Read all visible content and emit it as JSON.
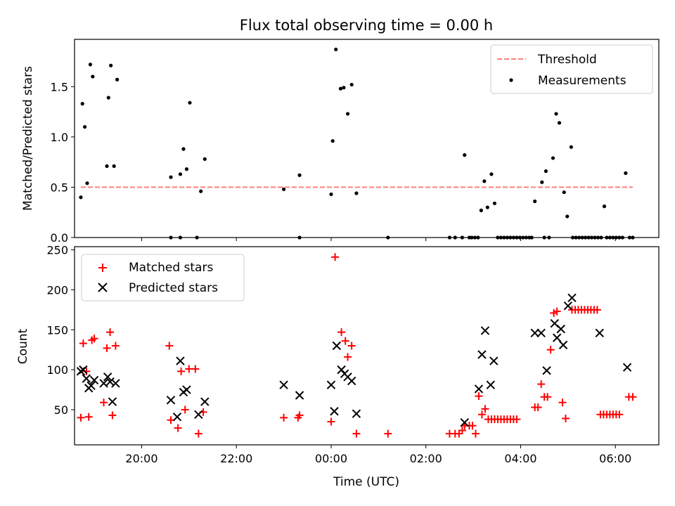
{
  "chart_data": [
    {
      "type": "scatter",
      "title": "Flux total observing time = 0.00 h",
      "xlabel": "",
      "ylabel": "Matched/Predicted stars",
      "xlim": [
        "18:35",
        "06:55"
      ],
      "ylim": [
        0,
        1.97
      ],
      "yticks": [
        0.0,
        0.5,
        1.0,
        1.5
      ],
      "ytick_labels": [
        "0.0",
        "0.5",
        "1.0",
        "1.5"
      ],
      "legend": {
        "position": "top-right",
        "threshold_label": "Threshold",
        "measurements_label": "Measurements"
      },
      "threshold": {
        "value": 0.5,
        "x_start": "18:43",
        "x_end": "06:22",
        "color": "#ff7f7f",
        "style": "dashed"
      },
      "series": [
        {
          "name": "Measurements",
          "color": "#000000",
          "marker": "dot",
          "points": [
            [
              "18:43",
              0.4
            ],
            [
              "18:45",
              1.33
            ],
            [
              "18:48",
              1.1
            ],
            [
              "18:51",
              0.54
            ],
            [
              "18:55",
              1.72
            ],
            [
              "18:58",
              1.6
            ],
            [
              "19:16",
              0.71
            ],
            [
              "19:18",
              1.39
            ],
            [
              "19:21",
              1.71
            ],
            [
              "19:25",
              0.71
            ],
            [
              "19:29",
              1.57
            ],
            [
              "20:37",
              0.6
            ],
            [
              "20:37",
              0.0
            ],
            [
              "20:49",
              0.63
            ],
            [
              "20:49",
              0.0
            ],
            [
              "20:53",
              0.88
            ],
            [
              "20:57",
              0.68
            ],
            [
              "21:01",
              1.34
            ],
            [
              "21:10",
              0.0
            ],
            [
              "21:15",
              0.46
            ],
            [
              "21:20",
              0.78
            ],
            [
              "23:00",
              0.48
            ],
            [
              "23:20",
              0.62
            ],
            [
              "23:20",
              0.0
            ],
            [
              "00:00",
              0.43
            ],
            [
              "00:02",
              0.96
            ],
            [
              "00:06",
              1.87
            ],
            [
              "00:12",
              1.48
            ],
            [
              "00:16",
              1.49
            ],
            [
              "00:21",
              1.23
            ],
            [
              "00:26",
              1.52
            ],
            [
              "00:32",
              0.44
            ],
            [
              "01:12",
              0.0
            ],
            [
              "02:30",
              0.0
            ],
            [
              "02:37",
              0.0
            ],
            [
              "02:46",
              0.0
            ],
            [
              "02:49",
              0.82
            ],
            [
              "02:55",
              0.0
            ],
            [
              "02:58",
              0.0
            ],
            [
              "03:02",
              0.0
            ],
            [
              "03:06",
              0.0
            ],
            [
              "03:10",
              0.27
            ],
            [
              "03:14",
              0.56
            ],
            [
              "03:18",
              0.3
            ],
            [
              "03:23",
              0.63
            ],
            [
              "03:27",
              0.34
            ],
            [
              "03:31",
              0.0
            ],
            [
              "03:35",
              0.0
            ],
            [
              "03:39",
              0.0
            ],
            [
              "03:43",
              0.0
            ],
            [
              "03:47",
              0.0
            ],
            [
              "03:51",
              0.0
            ],
            [
              "03:55",
              0.0
            ],
            [
              "03:59",
              0.0
            ],
            [
              "04:03",
              0.0
            ],
            [
              "04:07",
              0.0
            ],
            [
              "04:11",
              0.0
            ],
            [
              "04:14",
              0.0
            ],
            [
              "04:18",
              0.36
            ],
            [
              "04:27",
              0.55
            ],
            [
              "04:30",
              0.0
            ],
            [
              "04:32",
              0.66
            ],
            [
              "04:36",
              0.0
            ],
            [
              "04:41",
              0.79
            ],
            [
              "04:45",
              1.23
            ],
            [
              "04:49",
              1.14
            ],
            [
              "04:55",
              0.45
            ],
            [
              "04:59",
              0.21
            ],
            [
              "05:04",
              0.9
            ],
            [
              "05:06",
              0.0
            ],
            [
              "05:10",
              0.0
            ],
            [
              "05:14",
              0.0
            ],
            [
              "05:18",
              0.0
            ],
            [
              "05:22",
              0.0
            ],
            [
              "05:26",
              0.0
            ],
            [
              "05:30",
              0.0
            ],
            [
              "05:34",
              0.0
            ],
            [
              "05:38",
              0.0
            ],
            [
              "05:42",
              0.0
            ],
            [
              "05:46",
              0.31
            ],
            [
              "05:49",
              0.0
            ],
            [
              "05:53",
              0.0
            ],
            [
              "05:57",
              0.0
            ],
            [
              "06:01",
              0.0
            ],
            [
              "06:05",
              0.0
            ],
            [
              "06:09",
              0.0
            ],
            [
              "06:13",
              0.64
            ],
            [
              "06:18",
              0.0
            ],
            [
              "06:22",
              0.0
            ]
          ]
        }
      ]
    },
    {
      "type": "scatter",
      "title": "",
      "xlabel": "Time (UTC)",
      "ylabel": "Count",
      "xlim": [
        "18:35",
        "06:55"
      ],
      "ylim": [
        6,
        254
      ],
      "xticks": [
        "20:00",
        "22:00",
        "00:00",
        "02:00",
        "04:00",
        "06:00"
      ],
      "xtick_labels": [
        "20:00",
        "22:00",
        "00:00",
        "02:00",
        "04:00",
        "06:00"
      ],
      "yticks": [
        50,
        100,
        150,
        200,
        250
      ],
      "ytick_labels": [
        "50",
        "100",
        "150",
        "200",
        "250"
      ],
      "legend": {
        "position": "top-left"
      },
      "series": [
        {
          "name": "Matched stars",
          "color": "#ff0000",
          "marker": "plus",
          "points": [
            [
              "18:43",
              40
            ],
            [
              "18:46",
              133
            ],
            [
              "18:50",
              98
            ],
            [
              "18:53",
              41
            ],
            [
              "18:57",
              137
            ],
            [
              "19:00",
              139
            ],
            [
              "19:12",
              59
            ],
            [
              "19:16",
              127
            ],
            [
              "19:20",
              147
            ],
            [
              "19:23",
              43
            ],
            [
              "19:27",
              130
            ],
            [
              "20:35",
              130
            ],
            [
              "20:37",
              37
            ],
            [
              "20:46",
              27
            ],
            [
              "20:50",
              98
            ],
            [
              "20:55",
              50
            ],
            [
              "21:00",
              101
            ],
            [
              "21:08",
              101
            ],
            [
              "21:12",
              20
            ],
            [
              "21:18",
              47
            ],
            [
              "23:00",
              40
            ],
            [
              "23:18",
              40
            ],
            [
              "23:20",
              43
            ],
            [
              "00:00",
              35
            ],
            [
              "00:05",
              241
            ],
            [
              "00:13",
              147
            ],
            [
              "00:18",
              136
            ],
            [
              "00:21",
              116
            ],
            [
              "00:26",
              130
            ],
            [
              "00:32",
              20
            ],
            [
              "01:12",
              20
            ],
            [
              "02:30",
              20
            ],
            [
              "02:37",
              20
            ],
            [
              "02:42",
              20
            ],
            [
              "02:46",
              24
            ],
            [
              "02:49",
              30
            ],
            [
              "02:55",
              30
            ],
            [
              "02:59",
              30
            ],
            [
              "03:03",
              20
            ],
            [
              "03:07",
              67
            ],
            [
              "03:11",
              44
            ],
            [
              "03:15",
              51
            ],
            [
              "03:19",
              38
            ],
            [
              "03:23",
              38
            ],
            [
              "03:27",
              38
            ],
            [
              "03:31",
              38
            ],
            [
              "03:35",
              38
            ],
            [
              "03:39",
              38
            ],
            [
              "03:43",
              38
            ],
            [
              "03:47",
              38
            ],
            [
              "03:51",
              38
            ],
            [
              "03:55",
              38
            ],
            [
              "04:18",
              53
            ],
            [
              "04:22",
              53
            ],
            [
              "04:26",
              82
            ],
            [
              "04:30",
              66
            ],
            [
              "04:34",
              66
            ],
            [
              "04:38",
              125
            ],
            [
              "04:42",
              171
            ],
            [
              "04:46",
              173
            ],
            [
              "04:53",
              59
            ],
            [
              "04:57",
              39
            ],
            [
              "05:05",
              175
            ],
            [
              "05:09",
              175
            ],
            [
              "05:13",
              175
            ],
            [
              "05:17",
              175
            ],
            [
              "05:21",
              175
            ],
            [
              "05:25",
              175
            ],
            [
              "05:29",
              175
            ],
            [
              "05:33",
              175
            ],
            [
              "05:37",
              175
            ],
            [
              "05:41",
              44
            ],
            [
              "05:45",
              44
            ],
            [
              "05:49",
              44
            ],
            [
              "05:53",
              44
            ],
            [
              "05:57",
              44
            ],
            [
              "06:01",
              44
            ],
            [
              "06:05",
              44
            ],
            [
              "06:17",
              66
            ],
            [
              "06:22",
              66
            ]
          ]
        },
        {
          "name": "Predicted stars",
          "color": "#000000",
          "marker": "x",
          "points": [
            [
              "18:43",
              98
            ],
            [
              "18:46",
              100
            ],
            [
              "18:50",
              89
            ],
            [
              "18:53",
              77
            ],
            [
              "18:56",
              80
            ],
            [
              "19:00",
              87
            ],
            [
              "19:12",
              83
            ],
            [
              "19:17",
              91
            ],
            [
              "19:20",
              85
            ],
            [
              "19:23",
              60
            ],
            [
              "19:27",
              83
            ],
            [
              "20:37",
              62
            ],
            [
              "20:45",
              41
            ],
            [
              "20:49",
              111
            ],
            [
              "20:53",
              72
            ],
            [
              "20:57",
              75
            ],
            [
              "21:12",
              44
            ],
            [
              "21:20",
              60
            ],
            [
              "23:00",
              81
            ],
            [
              "23:20",
              68
            ],
            [
              "00:00",
              81
            ],
            [
              "00:04",
              48
            ],
            [
              "00:07",
              130
            ],
            [
              "00:13",
              100
            ],
            [
              "00:17",
              95
            ],
            [
              "00:21",
              91
            ],
            [
              "00:26",
              86
            ],
            [
              "00:32",
              45
            ],
            [
              "02:49",
              34
            ],
            [
              "03:07",
              76
            ],
            [
              "03:11",
              119
            ],
            [
              "03:15",
              149
            ],
            [
              "03:22",
              81
            ],
            [
              "03:26",
              111
            ],
            [
              "04:18",
              146
            ],
            [
              "04:26",
              146
            ],
            [
              "04:33",
              99
            ],
            [
              "04:43",
              158
            ],
            [
              "04:46",
              140
            ],
            [
              "04:51",
              151
            ],
            [
              "04:54",
              131
            ],
            [
              "05:00",
              180
            ],
            [
              "05:05",
              190
            ],
            [
              "05:40",
              146
            ],
            [
              "06:15",
              103
            ]
          ]
        }
      ]
    }
  ]
}
